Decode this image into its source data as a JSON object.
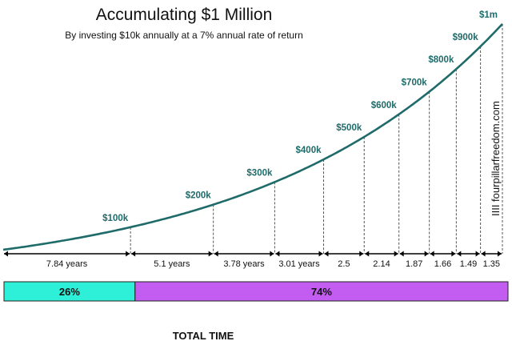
{
  "title": "Accumulating $1 Million",
  "subtitle": "By investing $10k annually at a 7% annual rate of return",
  "watermark": "IIII fourpillarfreedom.com",
  "colors": {
    "curve": "#1f6b6a",
    "milestone_label": "#1f6b6a",
    "bar_first": "#2ef0d8",
    "bar_second": "#c35cf0"
  },
  "chart_data": {
    "type": "line",
    "title": "Accumulating $1 Million",
    "subtitle": "By investing $10k annually at a 7% annual rate of return",
    "milestones": [
      "$100k",
      "$200k",
      "$300k",
      "$400k",
      "$500k",
      "$600k",
      "$700k",
      "$800k",
      "$900k",
      "$1m"
    ],
    "milestone_values": [
      100000,
      200000,
      300000,
      400000,
      500000,
      600000,
      700000,
      800000,
      900000,
      1000000
    ],
    "interval_labels": [
      "7.84 years",
      "5.1 years",
      "3.78 years",
      "3.01 years",
      "2.5",
      "2.14",
      "1.87",
      "1.66",
      "1.49",
      "1.35"
    ],
    "interval_years": [
      7.84,
      5.1,
      3.78,
      3.01,
      2.5,
      2.14,
      1.87,
      1.66,
      1.49,
      1.35
    ],
    "annual_contribution": 10000,
    "annual_return": 0.07,
    "total_time": {
      "label": "TOTAL TIME",
      "segments": [
        {
          "label": "26%",
          "value": 26
        },
        {
          "label": "74%",
          "value": 74
        }
      ]
    }
  }
}
